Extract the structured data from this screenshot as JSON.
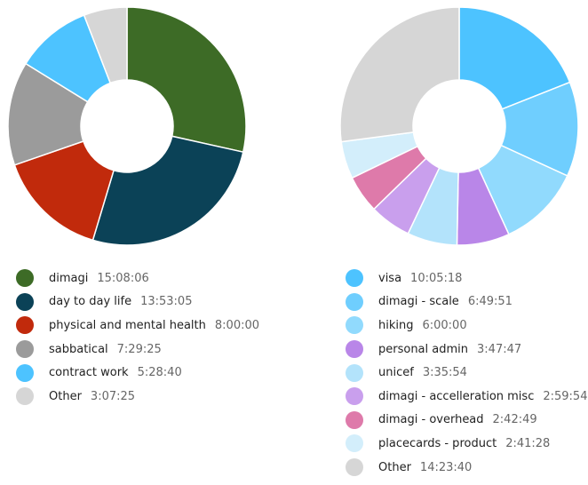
{
  "chart_data": [
    {
      "type": "pie",
      "variant": "donut",
      "legend_position": "bottom",
      "series": [
        {
          "name": "dimagi",
          "duration": "15:08:06",
          "value": 15.135,
          "color": "#3d6b26"
        },
        {
          "name": "day to day life",
          "duration": "13:53:05",
          "value": 13.885,
          "color": "#0b4257"
        },
        {
          "name": "physical and mental health",
          "duration": "8:00:00",
          "value": 8.0,
          "color": "#c12a0c"
        },
        {
          "name": "sabbatical",
          "duration": "7:29:25",
          "value": 7.49,
          "color": "#9b9b9b"
        },
        {
          "name": "contract work",
          "duration": "5:28:40",
          "value": 5.478,
          "color": "#4dc3ff"
        },
        {
          "name": "Other",
          "duration": "3:07:25",
          "value": 3.124,
          "color": "#d6d6d6"
        }
      ]
    },
    {
      "type": "pie",
      "variant": "donut",
      "legend_position": "bottom",
      "series": [
        {
          "name": "visa",
          "duration": "10:05:18",
          "value": 10.088,
          "color": "#4dc3ff"
        },
        {
          "name": "dimagi - scale",
          "duration": "6:49:51",
          "value": 6.831,
          "color": "#6fcefe"
        },
        {
          "name": "hiking",
          "duration": "6:00:00",
          "value": 6.0,
          "color": "#91dafd"
        },
        {
          "name": "personal admin",
          "duration": "3:47:47",
          "value": 3.796,
          "color": "#b986e8"
        },
        {
          "name": "unicef",
          "duration": "3:35:54",
          "value": 3.598,
          "color": "#b3e3fb"
        },
        {
          "name": "dimagi - accelleration misc",
          "duration": "2:59:54",
          "value": 2.998,
          "color": "#c99fed"
        },
        {
          "name": "dimagi - overhead",
          "duration": "2:42:49",
          "value": 2.714,
          "color": "#de7aaa"
        },
        {
          "name": "placecards - product",
          "duration": "2:41:28",
          "value": 2.691,
          "color": "#d3eefb"
        },
        {
          "name": "Other",
          "duration": "14:23:40",
          "value": 14.394,
          "color": "#d6d6d6"
        }
      ]
    }
  ]
}
